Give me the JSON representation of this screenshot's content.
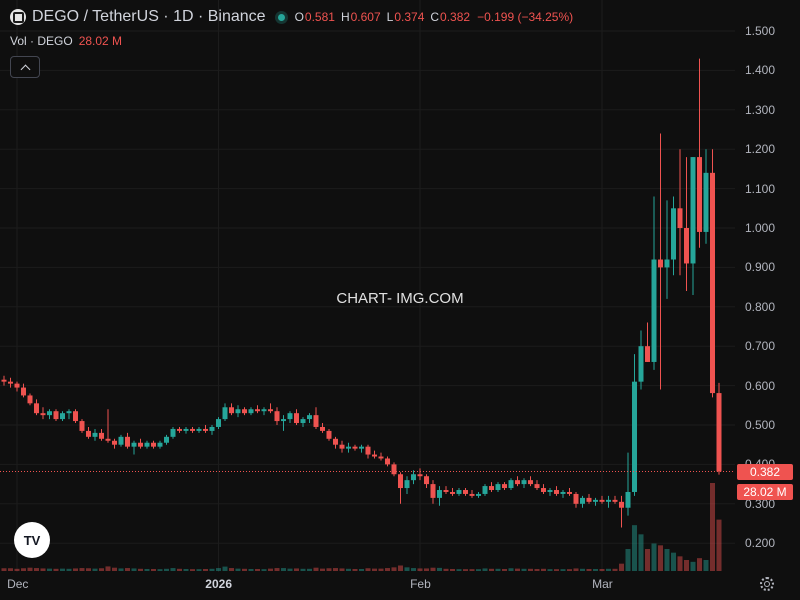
{
  "header": {
    "title": "DEGO / TetherUS · 1D · Binance",
    "open_label": "O",
    "open_value": "0.581",
    "high_label": "H",
    "high_value": "0.607",
    "low_label": "L",
    "low_value": "0.374",
    "close_label": "C",
    "close_value": "0.382",
    "change": "−0.199 (−34.25%)"
  },
  "volume_legend": {
    "label": "Vol · DEGO",
    "value": "28.02 M"
  },
  "watermark": "CHART- IMG.COM",
  "logo_text": "TV",
  "price_tag": "0.382",
  "volume_tag": "28.02 M",
  "colors": {
    "up": "#26a69a",
    "down": "#ef5350",
    "background": "#0f0f0f",
    "text": "#b2b5be"
  },
  "icons": [
    "collapse-chevron-icon",
    "settings-gear-icon",
    "tradingview-logo-icon",
    "market-status-dot-icon"
  ],
  "chart_data": {
    "type": "candlestick",
    "symbol": "DEGO / TetherUS",
    "interval": "1D",
    "exchange": "Binance",
    "y_range": [
      0.13,
      1.52
    ],
    "y_ticks": [
      "1.500",
      "1.400",
      "1.300",
      "1.200",
      "1.100",
      "1.000",
      "0.900",
      "0.800",
      "0.700",
      "0.600",
      "0.500",
      "0.400",
      "0.300",
      "0.200"
    ],
    "x_ticks": [
      {
        "label": "Dec",
        "index": 2,
        "bold": false
      },
      {
        "label": "2026",
        "index": 33,
        "bold": true
      },
      {
        "label": "Feb",
        "index": 64,
        "bold": false
      },
      {
        "label": "Mar",
        "index": 92,
        "bold": false
      }
    ],
    "last_price": 0.382,
    "last_volume": 28.02,
    "volume_unit": "M",
    "volume_max": 60,
    "candles": [
      [
        0.615,
        0.625,
        0.6,
        0.61,
        1.5
      ],
      [
        0.61,
        0.62,
        0.595,
        0.605,
        1.5
      ],
      [
        0.605,
        0.61,
        0.585,
        0.595,
        1.2
      ],
      [
        0.595,
        0.605,
        0.57,
        0.575,
        1.5
      ],
      [
        0.575,
        0.58,
        0.55,
        0.555,
        1.8
      ],
      [
        0.555,
        0.565,
        0.525,
        0.53,
        1.6
      ],
      [
        0.53,
        0.545,
        0.515,
        0.525,
        1.4
      ],
      [
        0.525,
        0.54,
        0.515,
        0.535,
        1.3
      ],
      [
        0.535,
        0.54,
        0.51,
        0.515,
        1.2
      ],
      [
        0.515,
        0.535,
        0.51,
        0.53,
        1.3
      ],
      [
        0.53,
        0.54,
        0.515,
        0.535,
        1.2
      ],
      [
        0.535,
        0.54,
        0.505,
        0.51,
        1.4
      ],
      [
        0.51,
        0.515,
        0.48,
        0.485,
        1.6
      ],
      [
        0.485,
        0.495,
        0.465,
        0.47,
        1.5
      ],
      [
        0.47,
        0.49,
        0.46,
        0.48,
        1.3
      ],
      [
        0.48,
        0.49,
        0.46,
        0.465,
        1.5
      ],
      [
        0.465,
        0.54,
        0.455,
        0.46,
        2.5
      ],
      [
        0.46,
        0.465,
        0.44,
        0.45,
        1.8
      ],
      [
        0.45,
        0.475,
        0.445,
        0.47,
        1.4
      ],
      [
        0.47,
        0.48,
        0.44,
        0.445,
        1.6
      ],
      [
        0.445,
        0.46,
        0.425,
        0.455,
        1.4
      ],
      [
        0.455,
        0.465,
        0.44,
        0.445,
        1.2
      ],
      [
        0.445,
        0.46,
        0.44,
        0.455,
        1.1
      ],
      [
        0.455,
        0.46,
        0.44,
        0.445,
        1.1
      ],
      [
        0.445,
        0.46,
        0.44,
        0.455,
        1.0
      ],
      [
        0.455,
        0.475,
        0.45,
        0.47,
        1.2
      ],
      [
        0.47,
        0.495,
        0.465,
        0.49,
        1.6
      ],
      [
        0.49,
        0.495,
        0.48,
        0.485,
        1.2
      ],
      [
        0.485,
        0.495,
        0.478,
        0.49,
        1.1
      ],
      [
        0.49,
        0.495,
        0.48,
        0.485,
        1.0
      ],
      [
        0.485,
        0.495,
        0.48,
        0.49,
        1.0
      ],
      [
        0.49,
        0.5,
        0.48,
        0.485,
        1.1
      ],
      [
        0.485,
        0.5,
        0.475,
        0.495,
        1.2
      ],
      [
        0.495,
        0.52,
        0.49,
        0.515,
        1.6
      ],
      [
        0.515,
        0.555,
        0.51,
        0.545,
        2.4
      ],
      [
        0.545,
        0.555,
        0.525,
        0.53,
        1.6
      ],
      [
        0.53,
        0.55,
        0.52,
        0.54,
        1.3
      ],
      [
        0.54,
        0.545,
        0.525,
        0.53,
        1.2
      ],
      [
        0.53,
        0.545,
        0.525,
        0.54,
        1.1
      ],
      [
        0.54,
        0.55,
        0.53,
        0.535,
        1.1
      ],
      [
        0.535,
        0.545,
        0.525,
        0.54,
        1.0
      ],
      [
        0.54,
        0.555,
        0.53,
        0.535,
        1.3
      ],
      [
        0.535,
        0.545,
        0.5,
        0.51,
        1.6
      ],
      [
        0.51,
        0.525,
        0.485,
        0.515,
        1.6
      ],
      [
        0.515,
        0.535,
        0.505,
        0.53,
        1.3
      ],
      [
        0.53,
        0.54,
        0.5,
        0.505,
        1.4
      ],
      [
        0.505,
        0.52,
        0.495,
        0.515,
        1.2
      ],
      [
        0.515,
        0.53,
        0.505,
        0.525,
        1.2
      ],
      [
        0.525,
        0.545,
        0.49,
        0.495,
        1.8
      ],
      [
        0.495,
        0.505,
        0.48,
        0.485,
        1.3
      ],
      [
        0.485,
        0.49,
        0.46,
        0.465,
        1.5
      ],
      [
        0.465,
        0.47,
        0.44,
        0.45,
        1.6
      ],
      [
        0.45,
        0.46,
        0.43,
        0.44,
        1.4
      ],
      [
        0.44,
        0.455,
        0.43,
        0.445,
        1.2
      ],
      [
        0.445,
        0.45,
        0.435,
        0.44,
        1.1
      ],
      [
        0.44,
        0.45,
        0.43,
        0.445,
        1.1
      ],
      [
        0.445,
        0.45,
        0.415,
        0.425,
        1.5
      ],
      [
        0.425,
        0.435,
        0.415,
        0.42,
        1.3
      ],
      [
        0.42,
        0.43,
        0.41,
        0.415,
        1.3
      ],
      [
        0.415,
        0.42,
        0.395,
        0.4,
        1.6
      ],
      [
        0.4,
        0.405,
        0.37,
        0.375,
        2.0
      ],
      [
        0.375,
        0.38,
        0.3,
        0.34,
        3.0
      ],
      [
        0.34,
        0.37,
        0.325,
        0.36,
        2.0
      ],
      [
        0.36,
        0.385,
        0.35,
        0.375,
        1.6
      ],
      [
        0.375,
        0.39,
        0.36,
        0.37,
        1.4
      ],
      [
        0.37,
        0.375,
        0.34,
        0.35,
        1.4
      ],
      [
        0.35,
        0.36,
        0.3,
        0.315,
        1.8
      ],
      [
        0.315,
        0.345,
        0.295,
        0.335,
        1.7
      ],
      [
        0.335,
        0.345,
        0.325,
        0.33,
        1.2
      ],
      [
        0.33,
        0.34,
        0.32,
        0.325,
        1.1
      ],
      [
        0.325,
        0.34,
        0.32,
        0.335,
        1.0
      ],
      [
        0.335,
        0.34,
        0.32,
        0.325,
        1.0
      ],
      [
        0.325,
        0.335,
        0.315,
        0.32,
        1.0
      ],
      [
        0.32,
        0.33,
        0.315,
        0.325,
        1.0
      ],
      [
        0.325,
        0.35,
        0.32,
        0.345,
        1.4
      ],
      [
        0.345,
        0.355,
        0.33,
        0.335,
        1.2
      ],
      [
        0.335,
        0.355,
        0.33,
        0.35,
        1.2
      ],
      [
        0.35,
        0.355,
        0.335,
        0.34,
        1.1
      ],
      [
        0.34,
        0.365,
        0.335,
        0.36,
        1.5
      ],
      [
        0.36,
        0.37,
        0.345,
        0.35,
        1.3
      ],
      [
        0.35,
        0.365,
        0.34,
        0.36,
        1.2
      ],
      [
        0.36,
        0.37,
        0.345,
        0.35,
        1.2
      ],
      [
        0.35,
        0.36,
        0.335,
        0.34,
        1.1
      ],
      [
        0.34,
        0.35,
        0.325,
        0.33,
        1.2
      ],
      [
        0.33,
        0.34,
        0.32,
        0.335,
        1.0
      ],
      [
        0.335,
        0.345,
        0.32,
        0.325,
        1.0
      ],
      [
        0.325,
        0.335,
        0.315,
        0.33,
        1.0
      ],
      [
        0.33,
        0.34,
        0.32,
        0.325,
        1.0
      ],
      [
        0.325,
        0.33,
        0.29,
        0.3,
        1.4
      ],
      [
        0.3,
        0.32,
        0.29,
        0.315,
        1.2
      ],
      [
        0.315,
        0.325,
        0.3,
        0.305,
        1.1
      ],
      [
        0.305,
        0.315,
        0.295,
        0.31,
        1.1
      ],
      [
        0.31,
        0.32,
        0.3,
        0.305,
        1.1
      ],
      [
        0.305,
        0.32,
        0.29,
        0.31,
        1.2
      ],
      [
        0.31,
        0.32,
        0.3,
        0.305,
        1.2
      ],
      [
        0.305,
        0.32,
        0.24,
        0.29,
        4.0
      ],
      [
        0.29,
        0.43,
        0.27,
        0.33,
        12.0
      ],
      [
        0.33,
        0.68,
        0.32,
        0.61,
        25.0
      ],
      [
        0.61,
        0.74,
        0.59,
        0.7,
        20.0
      ],
      [
        0.7,
        0.76,
        0.66,
        0.66,
        12.0
      ],
      [
        0.66,
        1.08,
        0.64,
        0.92,
        15.0
      ],
      [
        0.92,
        1.24,
        0.59,
        0.9,
        14.0
      ],
      [
        0.9,
        1.07,
        0.82,
        0.92,
        12.0
      ],
      [
        0.92,
        1.08,
        0.88,
        1.05,
        10.0
      ],
      [
        1.05,
        1.2,
        0.88,
        1.0,
        8.0
      ],
      [
        1.0,
        1.18,
        0.84,
        0.91,
        6.0
      ],
      [
        0.91,
        1.18,
        0.83,
        1.18,
        5.0
      ],
      [
        1.18,
        1.43,
        0.95,
        0.99,
        7.0
      ],
      [
        0.99,
        1.2,
        0.96,
        1.14,
        6.0
      ],
      [
        1.14,
        1.2,
        0.57,
        0.581,
        48.0
      ],
      [
        0.581,
        0.607,
        0.374,
        0.382,
        28.02
      ]
    ]
  }
}
